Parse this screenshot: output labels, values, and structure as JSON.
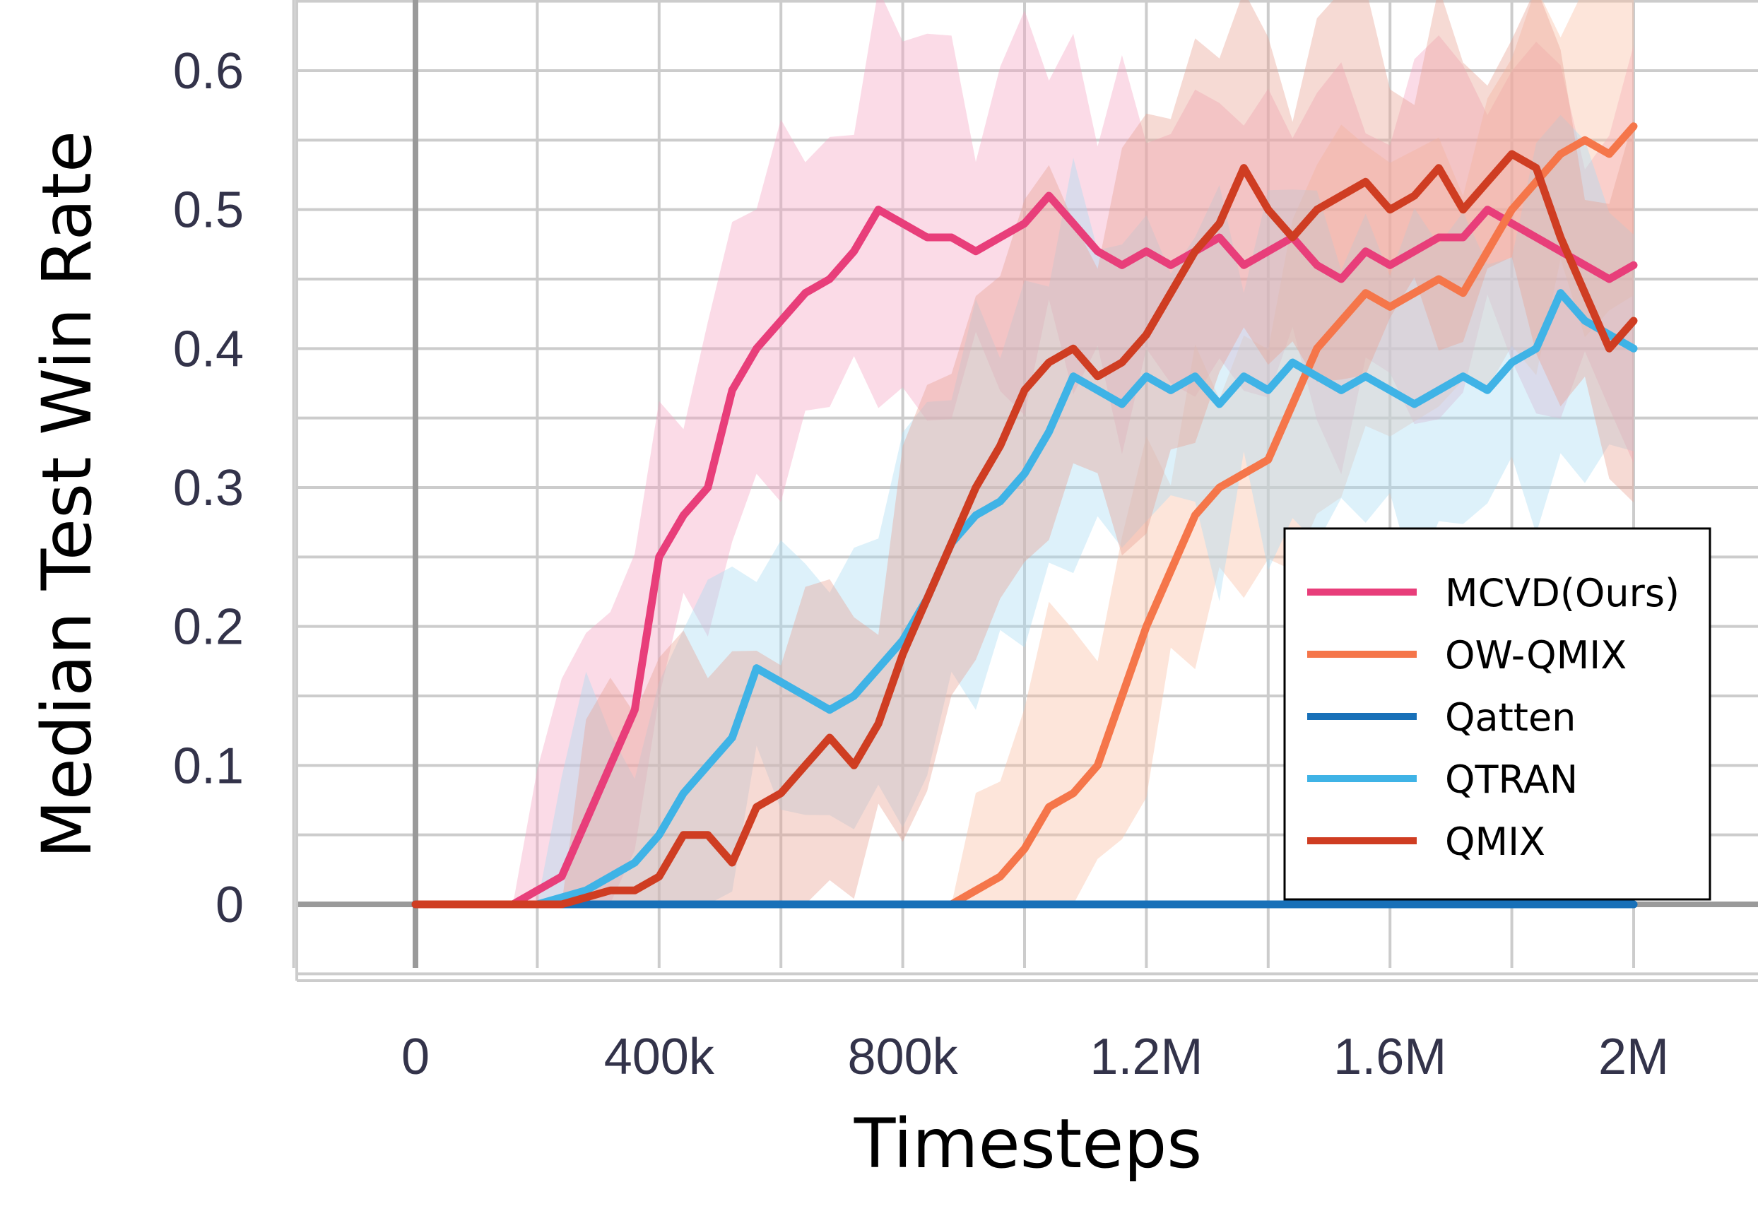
{
  "chart_data": {
    "type": "line",
    "title": "",
    "xlabel": "Timesteps",
    "ylabel": "Median Test Win Rate",
    "xlim": [
      -200000,
      2200000
    ],
    "ylim": [
      -0.05,
      0.66
    ],
    "x_ticks": [
      0,
      400000,
      800000,
      1200000,
      1600000,
      2000000
    ],
    "x_tick_labels": [
      "0",
      "400k",
      "800k",
      "1.2M",
      "1.6M",
      "2M"
    ],
    "y_ticks": [
      0,
      0.1,
      0.2,
      0.3,
      0.4,
      0.5,
      0.6
    ],
    "y_tick_labels": [
      "0",
      "0.1",
      "0.2",
      "0.3",
      "0.4",
      "0.5",
      "0.6"
    ],
    "grid": true,
    "legend_position": "lower-right",
    "x": [
      0,
      100000,
      160000,
      200000,
      240000,
      280000,
      320000,
      360000,
      400000,
      440000,
      480000,
      520000,
      560000,
      600000,
      640000,
      680000,
      720000,
      760000,
      800000,
      840000,
      880000,
      920000,
      960000,
      1000000,
      1040000,
      1080000,
      1120000,
      1160000,
      1200000,
      1240000,
      1280000,
      1320000,
      1360000,
      1400000,
      1440000,
      1480000,
      1520000,
      1560000,
      1600000,
      1640000,
      1680000,
      1720000,
      1760000,
      1800000,
      1840000,
      1880000,
      1920000,
      1960000,
      2000000
    ],
    "series": [
      {
        "name": "MCVD(Ours)",
        "color": "#e83e7a",
        "band_color": "#f4a6c4",
        "values": [
          0,
          0,
          0,
          0.01,
          0.02,
          0.06,
          0.1,
          0.14,
          0.25,
          0.28,
          0.3,
          0.37,
          0.4,
          0.42,
          0.44,
          0.45,
          0.47,
          0.5,
          0.49,
          0.48,
          0.48,
          0.47,
          0.48,
          0.49,
          0.51,
          0.49,
          0.47,
          0.46,
          0.47,
          0.46,
          0.47,
          0.48,
          0.46,
          0.47,
          0.48,
          0.46,
          0.45,
          0.47,
          0.46,
          0.47,
          0.48,
          0.48,
          0.5,
          0.49,
          0.48,
          0.47,
          0.46,
          0.45,
          0.46
        ]
      },
      {
        "name": "OW-QMIX",
        "color": "#f5764a",
        "band_color": "#f9bda3",
        "values": [
          0,
          0,
          0,
          0,
          0,
          0,
          0,
          0,
          0,
          0,
          0,
          0,
          0,
          0,
          0,
          0,
          0,
          0,
          0,
          0,
          0,
          0.01,
          0.02,
          0.04,
          0.07,
          0.08,
          0.1,
          0.15,
          0.2,
          0.24,
          0.28,
          0.3,
          0.31,
          0.32,
          0.36,
          0.4,
          0.42,
          0.44,
          0.43,
          0.44,
          0.45,
          0.44,
          0.47,
          0.5,
          0.52,
          0.54,
          0.55,
          0.54,
          0.56
        ]
      },
      {
        "name": "Qatten",
        "color": "#1870b8",
        "band_color": "#1870b8",
        "values": [
          0,
          0,
          0,
          0,
          0,
          0,
          0,
          0,
          0,
          0,
          0,
          0,
          0,
          0,
          0,
          0,
          0,
          0,
          0,
          0,
          0,
          0,
          0,
          0,
          0,
          0,
          0,
          0,
          0,
          0,
          0,
          0,
          0,
          0,
          0,
          0,
          0,
          0,
          0,
          0,
          0,
          0,
          0,
          0,
          0,
          0,
          0,
          0,
          0
        ]
      },
      {
        "name": "QTRAN",
        "color": "#3fb3e6",
        "band_color": "#a9dbf3",
        "values": [
          0,
          0,
          0,
          0,
          0.005,
          0.01,
          0.02,
          0.03,
          0.05,
          0.08,
          0.1,
          0.12,
          0.17,
          0.16,
          0.15,
          0.14,
          0.15,
          0.17,
          0.19,
          0.22,
          0.26,
          0.28,
          0.29,
          0.31,
          0.34,
          0.38,
          0.37,
          0.36,
          0.38,
          0.37,
          0.38,
          0.36,
          0.38,
          0.37,
          0.39,
          0.38,
          0.37,
          0.38,
          0.37,
          0.36,
          0.37,
          0.38,
          0.37,
          0.39,
          0.4,
          0.44,
          0.42,
          0.41,
          0.4
        ]
      },
      {
        "name": "QMIX",
        "color": "#cf3d22",
        "band_color": "#e8a394",
        "values": [
          0,
          0,
          0,
          0,
          0,
          0.005,
          0.01,
          0.01,
          0.02,
          0.05,
          0.05,
          0.03,
          0.07,
          0.08,
          0.1,
          0.12,
          0.1,
          0.13,
          0.18,
          0.22,
          0.26,
          0.3,
          0.33,
          0.37,
          0.39,
          0.4,
          0.38,
          0.39,
          0.41,
          0.44,
          0.47,
          0.49,
          0.53,
          0.5,
          0.48,
          0.5,
          0.51,
          0.52,
          0.5,
          0.51,
          0.53,
          0.5,
          0.52,
          0.54,
          0.53,
          0.48,
          0.44,
          0.4,
          0.42
        ]
      }
    ]
  }
}
